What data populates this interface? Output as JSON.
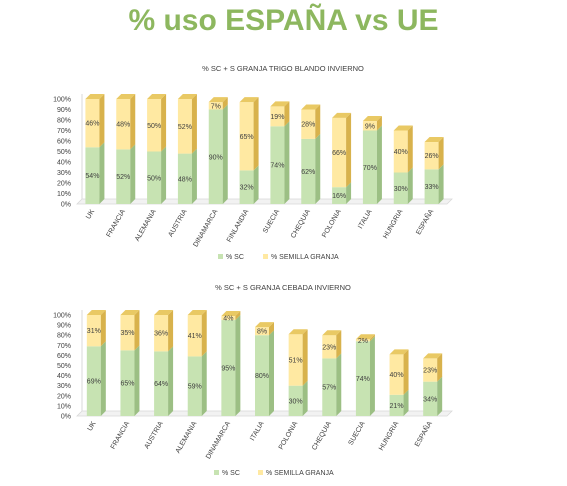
{
  "title": "% uso ESPAÑA vs UE",
  "colors": {
    "title": "#8db75f",
    "sc_face": "#c7e3b2",
    "sc_top": "#b3d39b",
    "sc_side": "#9cbf84",
    "sg_face": "#ffe9a2",
    "sg_top": "#e9c964",
    "sg_side": "#d8b24c",
    "axis": "#d9d9d9",
    "text": "#404040"
  },
  "chart_data": [
    {
      "type": "bar",
      "stacked": true,
      "title": "% SC + S GRANJA TRIGO BLANDO INVIERNO",
      "categories": [
        "UK",
        "FRANCIA",
        "ALEMANIA",
        "AUSTRIA",
        "DINAMARCA",
        "FINLANDIA",
        "SUECIA",
        "CHEQUIA",
        "POLONIA",
        "ITALIA",
        "HUNGRIA",
        "ESPAÑA"
      ],
      "series": [
        {
          "name": "% SC",
          "values": [
            54,
            52,
            50,
            48,
            90,
            32,
            74,
            62,
            16,
            70,
            30,
            33
          ]
        },
        {
          "name": "% SEMILLA GRANJA",
          "values": [
            46,
            48,
            50,
            52,
            7,
            65,
            19,
            28,
            66,
            9,
            40,
            26
          ]
        }
      ],
      "yticks": [
        "0%",
        "10%",
        "20%",
        "30%",
        "40%",
        "50%",
        "60%",
        "70%",
        "80%",
        "90%",
        "100%"
      ],
      "ylim": [
        0,
        100
      ],
      "legend": "bottom"
    },
    {
      "type": "bar",
      "stacked": true,
      "title": "% SC + S GRANJA CEBADA INVIERNO",
      "categories": [
        "UK",
        "FRANCIA",
        "AUSTRIA",
        "ALEMANIA",
        "DINAMARCA",
        "ITALIA",
        "POLONIA",
        "CHEQUIA",
        "SUECIA",
        "HUNGRIA",
        "ESPAÑA"
      ],
      "series": [
        {
          "name": "% SC",
          "values": [
            69,
            65,
            64,
            59,
            95,
            80,
            30,
            57,
            74,
            21,
            34
          ]
        },
        {
          "name": "% SEMILLA GRANJA",
          "values": [
            31,
            35,
            36,
            41,
            4,
            8,
            51,
            23,
            2,
            40,
            23
          ]
        }
      ],
      "yticks": [
        "0%",
        "10%",
        "20%",
        "30%",
        "40%",
        "50%",
        "60%",
        "70%",
        "80%",
        "90%",
        "100%"
      ],
      "ylim": [
        0,
        100
      ],
      "legend": "bottom"
    }
  ]
}
